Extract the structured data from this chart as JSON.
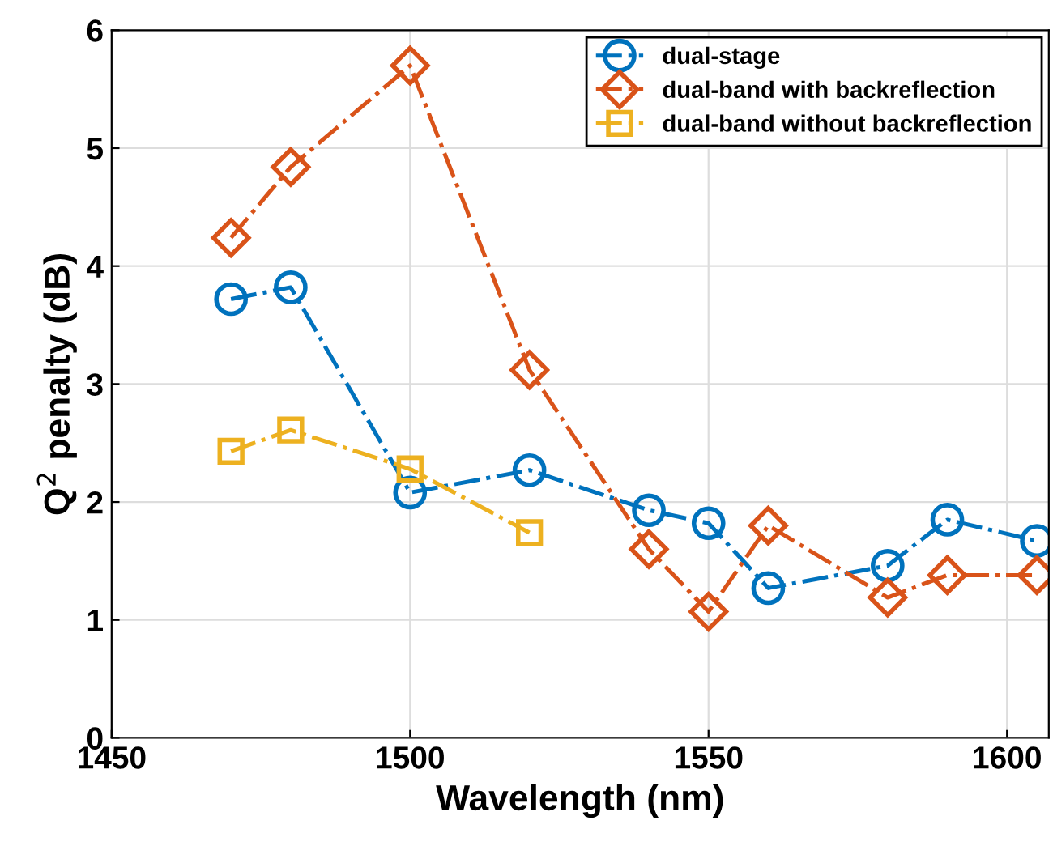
{
  "chart_data": {
    "type": "line",
    "xlabel": "Wavelength (nm)",
    "ylabel": "Q$^{2}$ penalty (dB)",
    "xlim": [
      1450,
      1607
    ],
    "xticks": [
      1450,
      1500,
      1550,
      1600
    ],
    "ylim": [
      0,
      6
    ],
    "yticks": [
      0,
      1,
      2,
      3,
      4,
      5,
      6
    ],
    "grid": true,
    "legend": "top right",
    "line_style": "dashdot",
    "series": [
      {
        "name": "dual-stage",
        "color": "#0072bd",
        "marker": "circle",
        "x": [
          1470,
          1480,
          1500,
          1520,
          1540,
          1550,
          1560,
          1580,
          1590,
          1605
        ],
        "values": [
          3.72,
          3.82,
          2.08,
          2.27,
          1.93,
          1.82,
          1.27,
          1.46,
          1.85,
          1.67
        ]
      },
      {
        "name": "dual-band with backreflection",
        "color": "#d95319",
        "marker": "diamond",
        "x": [
          1470,
          1480,
          1500,
          1520,
          1540,
          1550,
          1560,
          1580,
          1590,
          1605
        ],
        "values": [
          4.24,
          4.84,
          5.7,
          3.12,
          1.6,
          1.07,
          1.8,
          1.19,
          1.38,
          1.38
        ]
      },
      {
        "name": "dual-band without backreflection",
        "color": "#edb120",
        "marker": "square",
        "x": [
          1470,
          1480,
          1500,
          1520
        ],
        "values": [
          2.43,
          2.61,
          2.28,
          1.74
        ]
      }
    ]
  }
}
